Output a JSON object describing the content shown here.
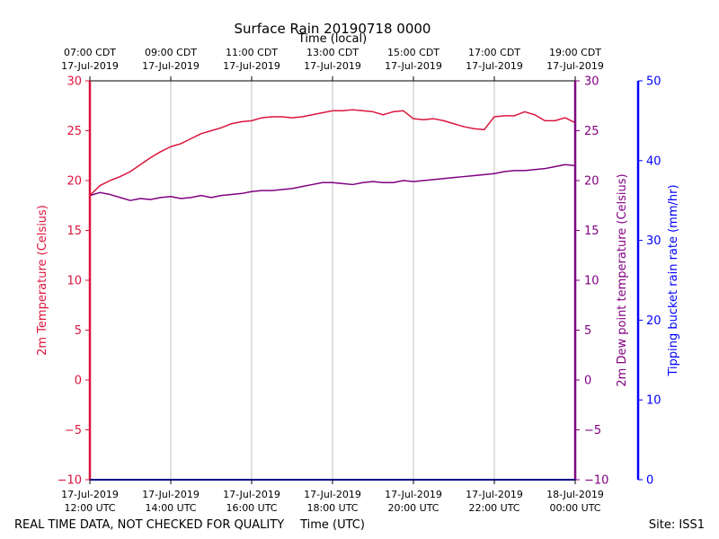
{
  "chart_data": {
    "type": "line",
    "title": "Surface Rain 20190718 0000",
    "top_axis_label": "Time (local)",
    "xlabel": "Time (UTC)",
    "ylabel_left": "2m Temperature (Celsius)",
    "ylabel_right": "2m Dew point temperature (Celsius)",
    "ylabel_far_right": "Tipping bucket rain rate (mm/hr)",
    "ylim": [
      -10,
      30
    ],
    "y_ticks": [
      -10,
      -5,
      0,
      5,
      10,
      15,
      20,
      25,
      30
    ],
    "rain_ylim": [
      0,
      50
    ],
    "rain_ticks": [
      0,
      10,
      20,
      30,
      40,
      50
    ],
    "x_range_hours": [
      12,
      24
    ],
    "x_ticks_bottom": [
      {
        "hour": 12,
        "date": "17-Jul-2019",
        "time": "12:00 UTC"
      },
      {
        "hour": 14,
        "date": "17-Jul-2019",
        "time": "14:00 UTC"
      },
      {
        "hour": 16,
        "date": "17-Jul-2019",
        "time": "16:00 UTC"
      },
      {
        "hour": 18,
        "date": "17-Jul-2019",
        "time": "18:00 UTC"
      },
      {
        "hour": 20,
        "date": "17-Jul-2019",
        "time": "20:00 UTC"
      },
      {
        "hour": 22,
        "date": "17-Jul-2019",
        "time": "22:00 UTC"
      },
      {
        "hour": 24,
        "date": "18-Jul-2019",
        "time": "00:00 UTC"
      }
    ],
    "x_ticks_top": [
      {
        "hour": 12,
        "time": "07:00 CDT",
        "date": "17-Jul-2019"
      },
      {
        "hour": 14,
        "time": "09:00 CDT",
        "date": "17-Jul-2019"
      },
      {
        "hour": 16,
        "time": "11:00 CDT",
        "date": "17-Jul-2019"
      },
      {
        "hour": 18,
        "time": "13:00 CDT",
        "date": "17-Jul-2019"
      },
      {
        "hour": 20,
        "time": "15:00 CDT",
        "date": "17-Jul-2019"
      },
      {
        "hour": 22,
        "time": "17:00 CDT",
        "date": "17-Jul-2019"
      },
      {
        "hour": 24,
        "time": "19:00 CDT",
        "date": "17-Jul-2019"
      }
    ],
    "grid": true,
    "series": [
      {
        "name": "2m Temperature",
        "color": "#dc143c",
        "x": [
          12.0,
          12.25,
          12.5,
          12.75,
          13.0,
          13.25,
          13.5,
          13.75,
          14.0,
          14.25,
          14.5,
          14.75,
          15.0,
          15.25,
          15.5,
          15.75,
          16.0,
          16.25,
          16.5,
          16.75,
          17.0,
          17.25,
          17.5,
          17.75,
          18.0,
          18.25,
          18.5,
          18.75,
          19.0,
          19.25,
          19.5,
          19.75,
          20.0,
          20.25,
          20.5,
          20.75,
          21.0,
          21.25,
          21.5,
          21.75,
          22.0,
          22.25,
          22.5,
          22.75,
          23.0,
          23.25,
          23.5,
          23.75,
          24.0
        ],
        "values": [
          18.5,
          19.5,
          20.0,
          20.4,
          20.9,
          21.6,
          22.3,
          22.9,
          23.4,
          23.7,
          24.2,
          24.7,
          25.0,
          25.3,
          25.7,
          25.9,
          26.0,
          26.3,
          26.4,
          26.4,
          26.3,
          26.4,
          26.6,
          26.8,
          27.0,
          27.0,
          27.1,
          27.0,
          26.9,
          26.6,
          26.9,
          27.0,
          26.2,
          26.1,
          26.2,
          26.0,
          25.7,
          25.4,
          25.2,
          25.1,
          26.4,
          26.5,
          26.5,
          26.9,
          26.6,
          26.0,
          26.0,
          26.3,
          25.8
        ]
      },
      {
        "name": "2m Dew point temperature",
        "color": "#800080",
        "x": [
          12.0,
          12.25,
          12.5,
          12.75,
          13.0,
          13.25,
          13.5,
          13.75,
          14.0,
          14.25,
          14.5,
          14.75,
          15.0,
          15.25,
          15.5,
          15.75,
          16.0,
          16.25,
          16.5,
          16.75,
          17.0,
          17.25,
          17.5,
          17.75,
          18.0,
          18.25,
          18.5,
          18.75,
          19.0,
          19.25,
          19.5,
          19.75,
          20.0,
          20.25,
          20.5,
          20.75,
          21.0,
          21.25,
          21.5,
          21.75,
          22.0,
          22.25,
          22.5,
          22.75,
          23.0,
          23.25,
          23.5,
          23.75,
          24.0
        ],
        "values": [
          18.5,
          18.8,
          18.6,
          18.3,
          18.0,
          18.2,
          18.1,
          18.3,
          18.4,
          18.2,
          18.3,
          18.5,
          18.3,
          18.5,
          18.6,
          18.7,
          18.9,
          19.0,
          19.0,
          19.1,
          19.2,
          19.4,
          19.6,
          19.8,
          19.8,
          19.7,
          19.6,
          19.8,
          19.9,
          19.8,
          19.8,
          20.0,
          19.9,
          20.0,
          20.1,
          20.2,
          20.3,
          20.4,
          20.5,
          20.6,
          20.7,
          20.9,
          21.0,
          21.0,
          21.1,
          21.2,
          21.4,
          21.6,
          21.5
        ]
      }
    ]
  },
  "footer": {
    "disclaimer": "REAL TIME DATA, NOT CHECKED FOR QUALITY",
    "site": "Site: ISS1"
  },
  "colors": {
    "temperature": "#dc143c",
    "dewpoint": "#800080",
    "rain": "#0000ff",
    "grid": "#b0b0b0"
  }
}
